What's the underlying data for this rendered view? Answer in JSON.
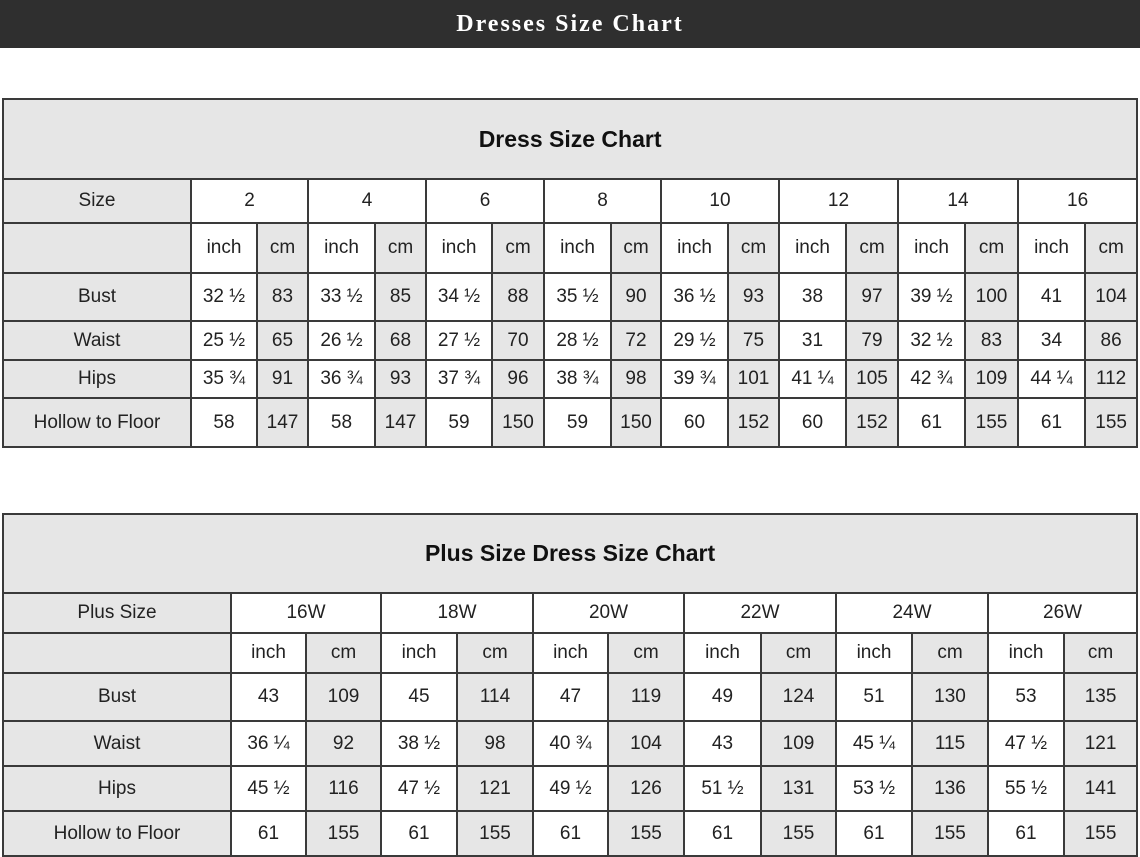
{
  "banner": {
    "title": "Dresses Size Chart"
  },
  "tables": [
    {
      "title": "Dress Size Chart",
      "size_label": "Size",
      "sizes": [
        "2",
        "4",
        "6",
        "8",
        "10",
        "12",
        "14",
        "16"
      ],
      "units": [
        "inch",
        "cm"
      ],
      "rows": [
        {
          "label": "Bust",
          "values": [
            "32 ½",
            "83",
            "33 ½",
            "85",
            "34 ½",
            "88",
            "35 ½",
            "90",
            "36 ½",
            "93",
            "38",
            "97",
            "39 ½",
            "100",
            "41",
            "104"
          ]
        },
        {
          "label": "Waist",
          "values": [
            "25 ½",
            "65",
            "26 ½",
            "68",
            "27 ½",
            "70",
            "28 ½",
            "72",
            "29 ½",
            "75",
            "31",
            "79",
            "32 ½",
            "83",
            "34",
            "86"
          ]
        },
        {
          "label": "Hips",
          "values": [
            "35 ¾",
            "91",
            "36 ¾",
            "93",
            "37 ¾",
            "96",
            "38 ¾",
            "98",
            "39 ¾",
            "101",
            "41 ¼",
            "105",
            "42 ¾",
            "109",
            "44 ¼",
            "112"
          ]
        },
        {
          "label": "Hollow to Floor",
          "values": [
            "58",
            "147",
            "58",
            "147",
            "59",
            "150",
            "59",
            "150",
            "60",
            "152",
            "60",
            "152",
            "61",
            "155",
            "61",
            "155"
          ]
        }
      ]
    },
    {
      "title": "Plus Size Dress Size Chart",
      "size_label": "Plus Size",
      "sizes": [
        "16W",
        "18W",
        "20W",
        "22W",
        "24W",
        "26W"
      ],
      "units": [
        "inch",
        "cm"
      ],
      "rows": [
        {
          "label": "Bust",
          "values": [
            "43",
            "109",
            "45",
            "114",
            "47",
            "119",
            "49",
            "124",
            "51",
            "130",
            "53",
            "135"
          ]
        },
        {
          "label": "Waist",
          "values": [
            "36 ¼",
            "92",
            "38 ½",
            "98",
            "40 ¾",
            "104",
            "43",
            "109",
            "45 ¼",
            "115",
            "47 ½",
            "121"
          ]
        },
        {
          "label": "Hips",
          "values": [
            "45 ½",
            "116",
            "47 ½",
            "121",
            "49 ½",
            "126",
            "51 ½",
            "131",
            "53 ½",
            "136",
            "55 ½",
            "141"
          ]
        },
        {
          "label": "Hollow to Floor",
          "values": [
            "61",
            "155",
            "61",
            "155",
            "61",
            "155",
            "61",
            "155",
            "61",
            "155",
            "61",
            "155"
          ]
        }
      ]
    }
  ]
}
